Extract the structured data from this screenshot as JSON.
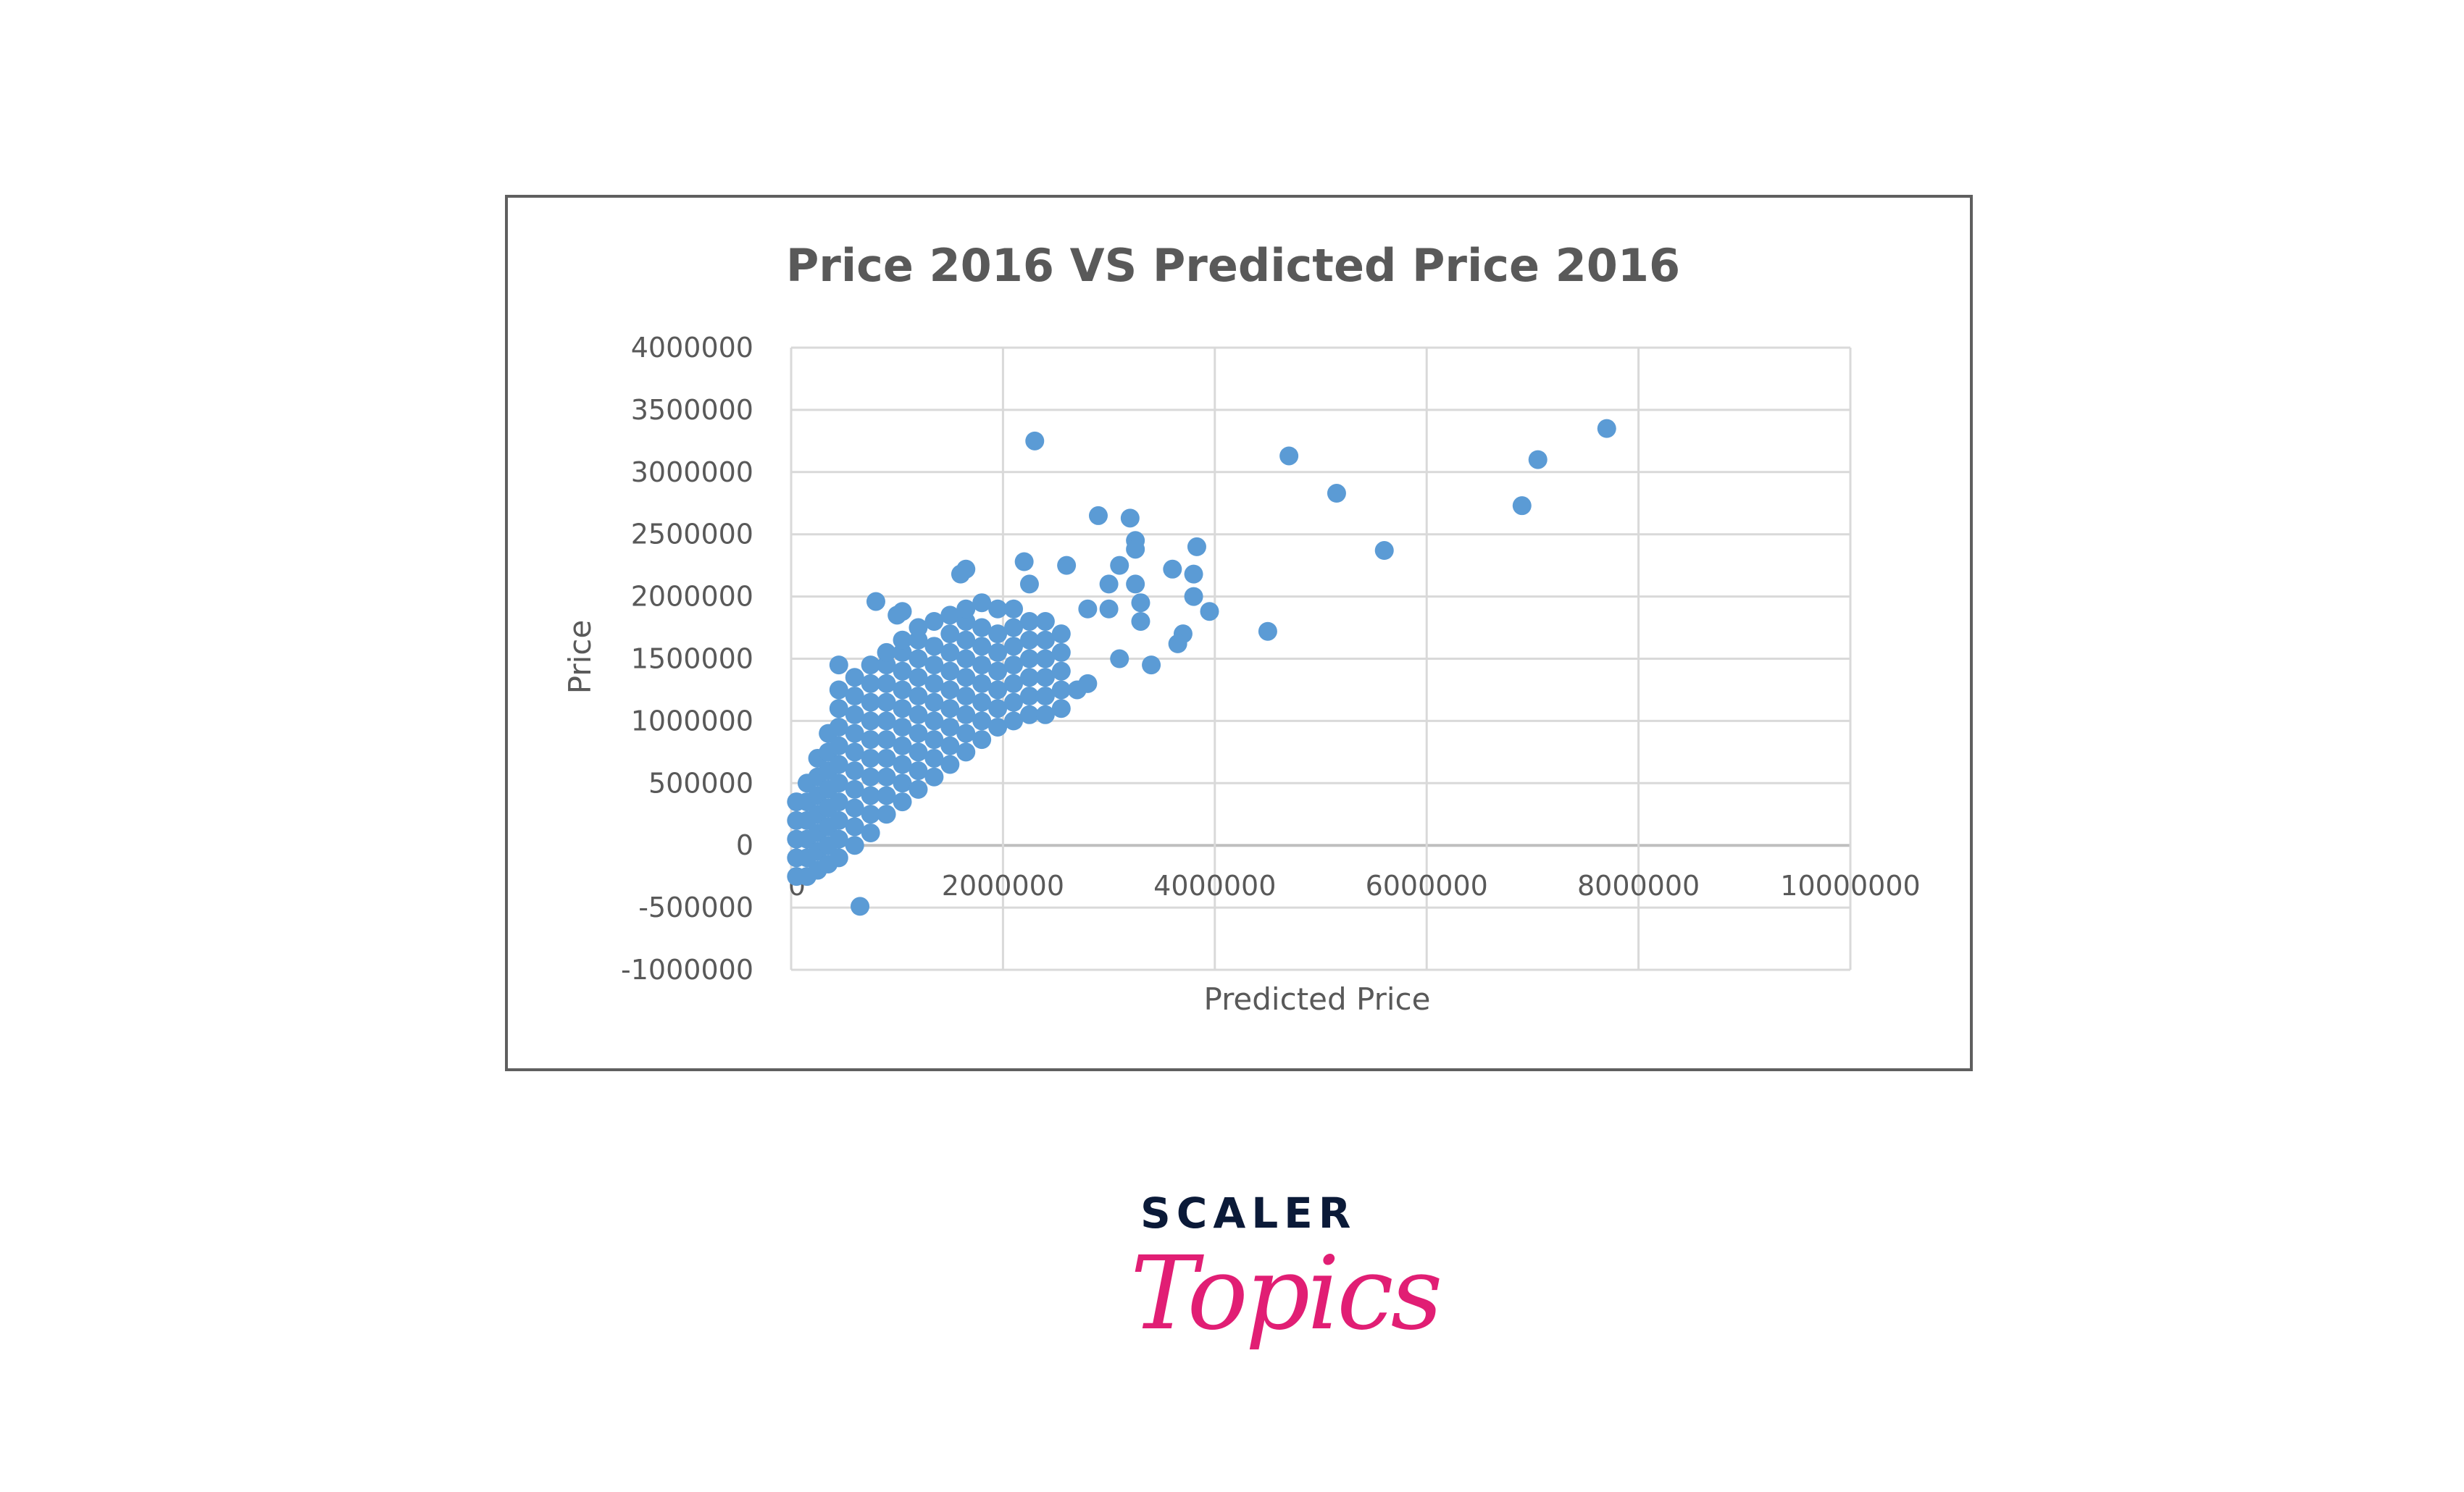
{
  "chart_data": {
    "type": "scatter",
    "title": "Price 2016 VS Predicted Price 2016",
    "xlabel": "Predicted Price",
    "ylabel": "Price",
    "xlim": [
      0,
      10000000
    ],
    "ylim": [
      -1000000,
      4000000
    ],
    "x_ticks": [
      "0",
      "2000000",
      "4000000",
      "6000000",
      "8000000",
      "10000000"
    ],
    "x_tick_values": [
      0,
      2000000,
      4000000,
      6000000,
      8000000,
      10000000
    ],
    "y_ticks": [
      "4000000",
      "3500000",
      "3000000",
      "2500000",
      "2000000",
      "1500000",
      "1000000",
      "500000",
      "0",
      "-500000",
      "-1000000"
    ],
    "y_tick_values": [
      4000000,
      3500000,
      3000000,
      2500000,
      2000000,
      1500000,
      1000000,
      500000,
      0,
      -500000,
      -1000000
    ],
    "grid": true,
    "legend": "none",
    "marker_color": "#5B9BD5",
    "points": [
      [
        50000,
        -250000
      ],
      [
        50000,
        -100000
      ],
      [
        50000,
        50000
      ],
      [
        50000,
        200000
      ],
      [
        50000,
        350000
      ],
      [
        150000,
        -250000
      ],
      [
        150000,
        -100000
      ],
      [
        150000,
        50000
      ],
      [
        150000,
        200000
      ],
      [
        150000,
        350000
      ],
      [
        150000,
        500000
      ],
      [
        250000,
        -200000
      ],
      [
        250000,
        -50000
      ],
      [
        250000,
        100000
      ],
      [
        250000,
        250000
      ],
      [
        250000,
        400000
      ],
      [
        250000,
        550000
      ],
      [
        250000,
        700000
      ],
      [
        350000,
        -150000
      ],
      [
        350000,
        0
      ],
      [
        350000,
        150000
      ],
      [
        350000,
        300000
      ],
      [
        350000,
        450000
      ],
      [
        350000,
        600000
      ],
      [
        350000,
        750000
      ],
      [
        350000,
        900000
      ],
      [
        450000,
        -100000
      ],
      [
        450000,
        50000
      ],
      [
        450000,
        200000
      ],
      [
        450000,
        350000
      ],
      [
        450000,
        500000
      ],
      [
        450000,
        650000
      ],
      [
        450000,
        800000
      ],
      [
        450000,
        950000
      ],
      [
        450000,
        1100000
      ],
      [
        450000,
        1250000
      ],
      [
        450000,
        1450000
      ],
      [
        600000,
        0
      ],
      [
        600000,
        150000
      ],
      [
        600000,
        300000
      ],
      [
        600000,
        450000
      ],
      [
        600000,
        600000
      ],
      [
        600000,
        750000
      ],
      [
        600000,
        900000
      ],
      [
        600000,
        1050000
      ],
      [
        600000,
        1200000
      ],
      [
        600000,
        1350000
      ],
      [
        750000,
        100000
      ],
      [
        750000,
        250000
      ],
      [
        750000,
        400000
      ],
      [
        750000,
        550000
      ],
      [
        750000,
        700000
      ],
      [
        750000,
        850000
      ],
      [
        750000,
        1000000
      ],
      [
        750000,
        1150000
      ],
      [
        750000,
        1300000
      ],
      [
        750000,
        1450000
      ],
      [
        900000,
        250000
      ],
      [
        900000,
        400000
      ],
      [
        900000,
        550000
      ],
      [
        900000,
        700000
      ],
      [
        900000,
        850000
      ],
      [
        900000,
        1000000
      ],
      [
        900000,
        1150000
      ],
      [
        900000,
        1300000
      ],
      [
        900000,
        1450000
      ],
      [
        900000,
        1550000
      ],
      [
        1050000,
        350000
      ],
      [
        1050000,
        500000
      ],
      [
        1050000,
        650000
      ],
      [
        1050000,
        800000
      ],
      [
        1050000,
        950000
      ],
      [
        1050000,
        1100000
      ],
      [
        1050000,
        1250000
      ],
      [
        1050000,
        1400000
      ],
      [
        1050000,
        1550000
      ],
      [
        1050000,
        1650000
      ],
      [
        1200000,
        450000
      ],
      [
        1200000,
        600000
      ],
      [
        1200000,
        750000
      ],
      [
        1200000,
        900000
      ],
      [
        1200000,
        1050000
      ],
      [
        1200000,
        1200000
      ],
      [
        1200000,
        1350000
      ],
      [
        1200000,
        1500000
      ],
      [
        1200000,
        1650000
      ],
      [
        1200000,
        1750000
      ],
      [
        1350000,
        550000
      ],
      [
        1350000,
        700000
      ],
      [
        1350000,
        850000
      ],
      [
        1350000,
        1000000
      ],
      [
        1350000,
        1150000
      ],
      [
        1350000,
        1300000
      ],
      [
        1350000,
        1450000
      ],
      [
        1350000,
        1600000
      ],
      [
        1350000,
        1800000
      ],
      [
        1500000,
        650000
      ],
      [
        1500000,
        800000
      ],
      [
        1500000,
        950000
      ],
      [
        1500000,
        1100000
      ],
      [
        1500000,
        1250000
      ],
      [
        1500000,
        1400000
      ],
      [
        1500000,
        1550000
      ],
      [
        1500000,
        1700000
      ],
      [
        1500000,
        1850000
      ],
      [
        1650000,
        750000
      ],
      [
        1650000,
        900000
      ],
      [
        1650000,
        1050000
      ],
      [
        1650000,
        1200000
      ],
      [
        1650000,
        1350000
      ],
      [
        1650000,
        1500000
      ],
      [
        1650000,
        1650000
      ],
      [
        1650000,
        1800000
      ],
      [
        1650000,
        1900000
      ],
      [
        1800000,
        850000
      ],
      [
        1800000,
        1000000
      ],
      [
        1800000,
        1150000
      ],
      [
        1800000,
        1300000
      ],
      [
        1800000,
        1450000
      ],
      [
        1800000,
        1600000
      ],
      [
        1800000,
        1750000
      ],
      [
        1800000,
        1950000
      ],
      [
        1950000,
        950000
      ],
      [
        1950000,
        1100000
      ],
      [
        1950000,
        1250000
      ],
      [
        1950000,
        1400000
      ],
      [
        1950000,
        1550000
      ],
      [
        1950000,
        1700000
      ],
      [
        1950000,
        1900000
      ],
      [
        2100000,
        1000000
      ],
      [
        2100000,
        1150000
      ],
      [
        2100000,
        1300000
      ],
      [
        2100000,
        1450000
      ],
      [
        2100000,
        1600000
      ],
      [
        2100000,
        1750000
      ],
      [
        2100000,
        1900000
      ],
      [
        2250000,
        1050000
      ],
      [
        2250000,
        1200000
      ],
      [
        2250000,
        1350000
      ],
      [
        2250000,
        1500000
      ],
      [
        2250000,
        1650000
      ],
      [
        2250000,
        1800000
      ],
      [
        2400000,
        1050000
      ],
      [
        2400000,
        1200000
      ],
      [
        2400000,
        1350000
      ],
      [
        2400000,
        1500000
      ],
      [
        2400000,
        1650000
      ],
      [
        2400000,
        1800000
      ],
      [
        2550000,
        1100000
      ],
      [
        2550000,
        1250000
      ],
      [
        2550000,
        1400000
      ],
      [
        2550000,
        1550000
      ],
      [
        2550000,
        1700000
      ],
      [
        2700000,
        1250000
      ],
      [
        2800000,
        1300000
      ],
      [
        2800000,
        1900000
      ],
      [
        3000000,
        1900000
      ],
      [
        3000000,
        2100000
      ],
      [
        3100000,
        1500000
      ],
      [
        3100000,
        2250000
      ],
      [
        3250000,
        2100000
      ],
      [
        3300000,
        1950000
      ],
      [
        3300000,
        1800000
      ],
      [
        2600000,
        2250000
      ],
      [
        2200000,
        2280000
      ],
      [
        2250000,
        2100000
      ],
      [
        1650000,
        2220000
      ],
      [
        1600000,
        2180000
      ],
      [
        800000,
        1960000
      ],
      [
        1050000,
        1880000
      ],
      [
        1000000,
        1850000
      ],
      [
        2900000,
        2650000
      ],
      [
        3200000,
        2630000
      ],
      [
        3250000,
        2450000
      ],
      [
        3250000,
        2380000
      ],
      [
        3600000,
        2220000
      ],
      [
        3800000,
        2180000
      ],
      [
        3830000,
        2400000
      ],
      [
        3800000,
        2000000
      ],
      [
        3950000,
        1880000
      ],
      [
        3700000,
        1700000
      ],
      [
        3650000,
        1620000
      ],
      [
        3400000,
        1450000
      ],
      [
        4500000,
        1720000
      ],
      [
        2300000,
        3250000
      ],
      [
        4700000,
        3130000
      ],
      [
        5150000,
        2830000
      ],
      [
        5600000,
        2370000
      ],
      [
        6900000,
        2730000
      ],
      [
        7050000,
        3100000
      ],
      [
        7700000,
        3350000
      ],
      [
        650000,
        -490000
      ]
    ]
  },
  "logo": {
    "top": "SCALER",
    "bottom": "Topics",
    "top_color": "#0B1A38",
    "bottom_color": "#E11E74"
  }
}
